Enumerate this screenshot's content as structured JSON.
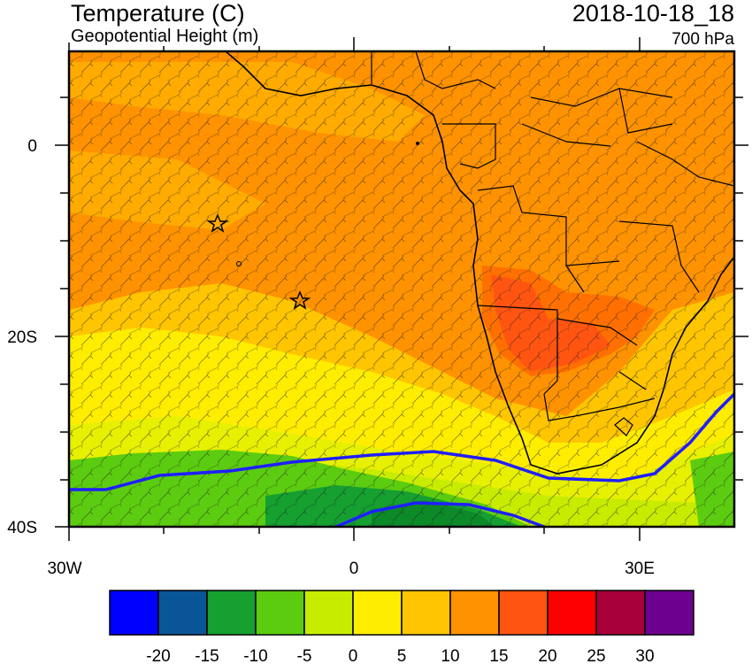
{
  "header": {
    "title": "Temperature (C)",
    "subtitle": "Geopotential Height (m)",
    "datetime": "2018-10-18_18",
    "level": "700 hPa"
  },
  "map": {
    "lon_labels": [
      "30W",
      "0",
      "30E"
    ],
    "lat_labels": [
      "0",
      "20S",
      "40S"
    ]
  },
  "colorbar": {
    "colors": [
      "#0000ff",
      "#0a5598",
      "#15a030",
      "#5ccc10",
      "#c8ec00",
      "#ffed00",
      "#ffc500",
      "#ff9200",
      "#ff5511",
      "#ff0000",
      "#a8003a",
      "#6e0090"
    ],
    "labels": [
      "-20",
      "-15",
      "-10",
      "-5",
      "0",
      "5",
      "10",
      "15",
      "20",
      "25",
      "30"
    ]
  },
  "legend_icons": [
    "star-icon"
  ]
}
